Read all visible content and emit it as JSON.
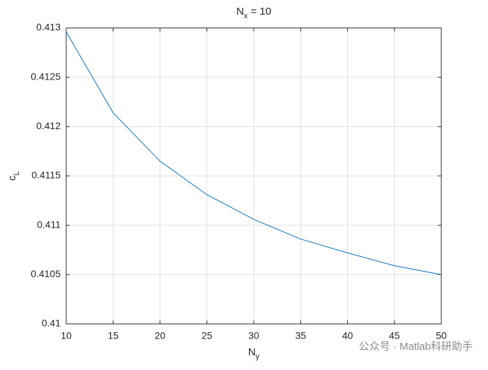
{
  "chart_data": {
    "type": "line",
    "title": [
      "N",
      "x",
      " = 10"
    ],
    "xlabel": [
      "N",
      "y"
    ],
    "ylabel": [
      "c",
      "L"
    ],
    "x": [
      10,
      15,
      20,
      25,
      30,
      35,
      40,
      45,
      50
    ],
    "series": [
      {
        "color": "#0072bd",
        "values": [
          0.41296,
          0.41214,
          0.41165,
          0.41131,
          0.41106,
          0.41086,
          0.41072,
          0.41059,
          0.4105
        ]
      }
    ],
    "xlim": [
      10,
      50
    ],
    "xticks": [
      10,
      15,
      20,
      25,
      30,
      35,
      40,
      45,
      50
    ],
    "ylim": [
      0.41,
      0.413
    ],
    "yticks": [
      0.41,
      0.4105,
      0.411,
      0.4115,
      0.412,
      0.4125,
      0.413
    ],
    "grid": true,
    "watermark": "公众号 · Matlab科研助手"
  }
}
